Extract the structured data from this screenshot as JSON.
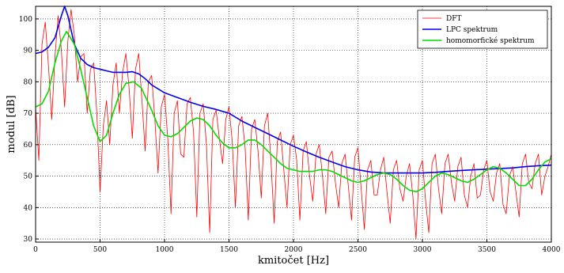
{
  "chart_data": {
    "type": "line",
    "title": "",
    "xlabel": "kmitočet [Hz]",
    "ylabel": "modul [dB]",
    "xlim": [
      0,
      4000
    ],
    "ylim": [
      29,
      104
    ],
    "xticks": [
      0,
      500,
      1000,
      1500,
      2000,
      2500,
      3000,
      3500,
      4000
    ],
    "yticks": [
      30,
      40,
      50,
      60,
      70,
      80,
      90,
      100
    ],
    "grid": true,
    "grid_style": "dotted",
    "legend_position": "top-right",
    "series": [
      {
        "name": "DFT",
        "color": "#ff0000",
        "x": [
          0,
          25,
          50,
          75,
          100,
          125,
          150,
          175,
          200,
          225,
          250,
          275,
          300,
          325,
          350,
          375,
          400,
          425,
          450,
          475,
          500,
          525,
          550,
          575,
          600,
          625,
          650,
          675,
          700,
          725,
          750,
          775,
          800,
          825,
          850,
          875,
          900,
          925,
          950,
          975,
          1000,
          1025,
          1050,
          1075,
          1100,
          1125,
          1150,
          1175,
          1200,
          1225,
          1250,
          1275,
          1300,
          1325,
          1350,
          1375,
          1400,
          1425,
          1450,
          1475,
          1500,
          1525,
          1550,
          1575,
          1600,
          1625,
          1650,
          1675,
          1700,
          1725,
          1750,
          1775,
          1800,
          1825,
          1850,
          1875,
          1900,
          1925,
          1950,
          1975,
          2000,
          2025,
          2050,
          2075,
          2100,
          2125,
          2150,
          2175,
          2200,
          2225,
          2250,
          2275,
          2300,
          2325,
          2350,
          2375,
          2400,
          2425,
          2450,
          2475,
          2500,
          2525,
          2550,
          2575,
          2600,
          2625,
          2650,
          2675,
          2700,
          2725,
          2750,
          2775,
          2800,
          2825,
          2850,
          2875,
          2900,
          2925,
          2950,
          2975,
          3000,
          3025,
          3050,
          3075,
          3100,
          3125,
          3150,
          3175,
          3200,
          3225,
          3250,
          3275,
          3300,
          3325,
          3350,
          3375,
          3400,
          3425,
          3450,
          3475,
          3500,
          3525,
          3550,
          3575,
          3600,
          3625,
          3650,
          3675,
          3700,
          3725,
          3750,
          3775,
          3800,
          3825,
          3850,
          3875,
          3900,
          3925,
          3950,
          3975,
          4000
        ],
        "y": [
          72,
          55,
          92,
          99,
          85,
          68,
          88,
          101,
          90,
          72,
          93,
          103,
          95,
          80,
          88,
          89,
          70,
          84,
          86,
          70,
          45,
          66,
          74,
          60,
          79,
          86,
          70,
          83,
          89,
          78,
          62,
          84,
          89,
          74,
          58,
          80,
          82,
          68,
          51,
          72,
          76,
          62,
          38,
          70,
          74,
          57,
          56,
          73,
          75,
          64,
          37,
          70,
          73,
          60,
          32,
          68,
          71,
          62,
          54,
          68,
          72,
          61,
          40,
          66,
          69,
          59,
          36,
          65,
          68,
          58,
          43,
          66,
          70,
          55,
          35,
          61,
          64,
          52,
          40,
          60,
          63,
          55,
          36,
          58,
          61,
          50,
          42,
          57,
          60,
          50,
          38,
          56,
          58,
          48,
          40,
          54,
          57,
          47,
          36,
          56,
          59,
          46,
          33,
          52,
          55,
          44,
          44,
          52,
          56,
          45,
          35,
          52,
          55,
          46,
          42,
          50,
          54,
          44,
          30,
          52,
          55,
          42,
          32,
          54,
          57,
          46,
          38,
          54,
          57,
          48,
          42,
          53,
          56,
          44,
          40,
          50,
          54,
          43,
          44,
          52,
          55,
          45,
          42,
          51,
          54,
          41,
          38,
          50,
          53,
          45,
          37,
          54,
          57,
          48,
          46,
          54,
          57,
          44,
          50,
          53,
          57
        ]
      },
      {
        "name": "LPC spektrum",
        "color": "#0000ee",
        "x": [
          0,
          50,
          100,
          150,
          200,
          225,
          250,
          300,
          350,
          400,
          450,
          500,
          550,
          600,
          650,
          700,
          750,
          800,
          850,
          900,
          1000,
          1100,
          1200,
          1300,
          1400,
          1500,
          1600,
          1700,
          1800,
          1900,
          2000,
          2100,
          2200,
          2300,
          2400,
          2500,
          2600,
          2700,
          2800,
          2900,
          3000,
          3100,
          3200,
          3300,
          3400,
          3500,
          3600,
          3700,
          3800,
          3900,
          4000
        ],
        "y": [
          89,
          89.5,
          91,
          94,
          101,
          104,
          101,
          92,
          87.5,
          85.5,
          84.5,
          84,
          83.5,
          83,
          83,
          83,
          83.2,
          82.5,
          81,
          79,
          76.5,
          75,
          73.5,
          72.2,
          71.2,
          70,
          67.5,
          65.5,
          63.5,
          61.5,
          59.5,
          57.7,
          56,
          54.5,
          53,
          52,
          51.3,
          51,
          51,
          51,
          51,
          51.2,
          51.5,
          51.8,
          52,
          52.2,
          52.4,
          52.6,
          53,
          53.3,
          53.5
        ]
      },
      {
        "name": "homomorfické spektrum",
        "color": "#00dd00",
        "x": [
          0,
          50,
          100,
          150,
          200,
          240,
          300,
          350,
          400,
          450,
          500,
          550,
          600,
          650,
          700,
          760,
          820,
          900,
          950,
          1000,
          1050,
          1100,
          1150,
          1200,
          1250,
          1300,
          1350,
          1400,
          1450,
          1500,
          1550,
          1600,
          1650,
          1700,
          1750,
          1800,
          1850,
          1900,
          1950,
          2000,
          2050,
          2100,
          2150,
          2200,
          2250,
          2300,
          2350,
          2400,
          2450,
          2500,
          2550,
          2600,
          2650,
          2700,
          2750,
          2800,
          2850,
          2900,
          2950,
          3000,
          3050,
          3100,
          3150,
          3200,
          3250,
          3300,
          3350,
          3400,
          3450,
          3500,
          3550,
          3600,
          3650,
          3700,
          3750,
          3800,
          3850,
          3900,
          3950,
          4000
        ],
        "y": [
          72,
          73,
          77,
          86,
          93,
          96,
          92,
          84,
          75,
          66,
          61,
          63,
          70,
          76,
          79.5,
          80,
          78,
          71,
          66,
          63,
          62.5,
          63.5,
          65.5,
          67.5,
          68.5,
          68,
          66,
          63,
          60.5,
          59,
          59,
          60,
          61.5,
          61.5,
          60,
          58,
          56,
          54,
          52.5,
          52,
          51.5,
          51.5,
          51.5,
          52,
          52,
          51.5,
          50.5,
          49.5,
          48.5,
          48,
          48.5,
          49.5,
          50.5,
          51,
          50.5,
          49,
          47,
          45.5,
          45,
          46,
          48,
          50,
          51,
          50.5,
          49.5,
          48.5,
          48,
          49,
          50.5,
          52,
          53,
          52.5,
          51,
          49,
          47,
          47,
          49,
          52,
          54.5,
          55.5
        ]
      }
    ]
  }
}
